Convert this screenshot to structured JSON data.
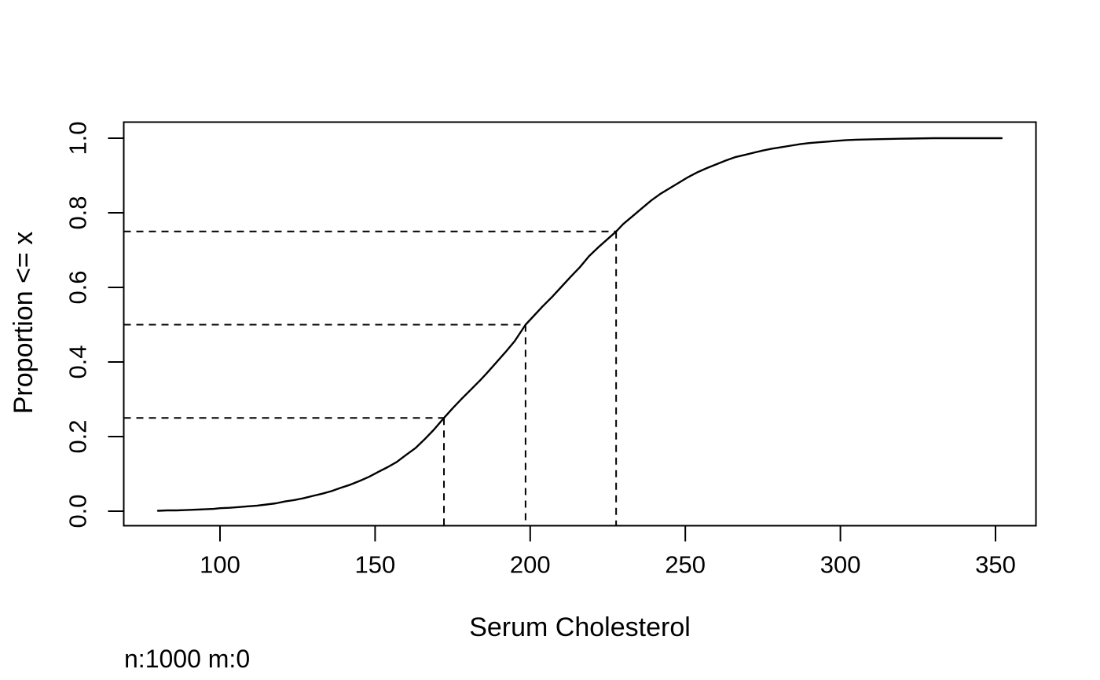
{
  "chart_data": {
    "type": "line",
    "subtype": "ecdf",
    "title": "",
    "xlabel": "Serum Cholesterol",
    "ylabel": "Proportion <= x",
    "footnote": "n:1000 m:0",
    "n": "1000",
    "m": "0",
    "x_ticks": [
      100,
      150,
      200,
      250,
      300,
      350
    ],
    "x_tick_labels": [
      "100",
      "150",
      "200",
      "250",
      "300",
      "350"
    ],
    "y_ticks": [
      0.0,
      0.2,
      0.4,
      0.6,
      0.8,
      1.0
    ],
    "y_tick_labels": [
      "0.0",
      "0.2",
      "0.4",
      "0.6",
      "0.8",
      "1.0"
    ],
    "xlim": [
      69,
      363.5
    ],
    "ylim": [
      -0.044,
      1.044
    ],
    "grid": false,
    "legend": "none",
    "line_color": "#000000",
    "dash_color": "#000000",
    "quantiles": [
      {
        "p": 0.25,
        "x": 172.2
      },
      {
        "p": 0.5,
        "x": 198.5
      },
      {
        "p": 0.75,
        "x": 227.7
      }
    ],
    "series": [
      {
        "name": "ecdf",
        "points": [
          [
            80,
            0.001
          ],
          [
            83,
            0.002
          ],
          [
            86,
            0.002
          ],
          [
            89,
            0.003
          ],
          [
            92,
            0.004
          ],
          [
            95,
            0.005
          ],
          [
            98,
            0.006
          ],
          [
            100,
            0.008
          ],
          [
            103,
            0.009
          ],
          [
            106,
            0.011
          ],
          [
            109,
            0.013
          ],
          [
            112,
            0.015
          ],
          [
            115,
            0.018
          ],
          [
            118,
            0.021
          ],
          [
            121,
            0.026
          ],
          [
            124,
            0.03
          ],
          [
            127,
            0.035
          ],
          [
            130,
            0.041
          ],
          [
            133,
            0.047
          ],
          [
            136,
            0.054
          ],
          [
            139,
            0.063
          ],
          [
            142,
            0.071
          ],
          [
            145,
            0.081
          ],
          [
            148,
            0.092
          ],
          [
            151,
            0.105
          ],
          [
            154,
            0.118
          ],
          [
            157,
            0.132
          ],
          [
            160,
            0.151
          ],
          [
            163,
            0.169
          ],
          [
            166,
            0.193
          ],
          [
            169,
            0.219
          ],
          [
            172.2,
            0.25
          ],
          [
            175,
            0.276
          ],
          [
            178,
            0.302
          ],
          [
            181,
            0.327
          ],
          [
            184,
            0.352
          ],
          [
            186,
            0.37
          ],
          [
            189,
            0.398
          ],
          [
            192,
            0.426
          ],
          [
            195,
            0.456
          ],
          [
            198.5,
            0.5
          ],
          [
            201,
            0.522
          ],
          [
            204,
            0.549
          ],
          [
            207,
            0.574
          ],
          [
            210,
            0.601
          ],
          [
            213,
            0.628
          ],
          [
            216,
            0.654
          ],
          [
            219,
            0.684
          ],
          [
            222,
            0.708
          ],
          [
            225,
            0.73
          ],
          [
            227.7,
            0.75
          ],
          [
            230,
            0.77
          ],
          [
            233,
            0.791
          ],
          [
            236,
            0.812
          ],
          [
            239,
            0.833
          ],
          [
            242,
            0.851
          ],
          [
            245,
            0.866
          ],
          [
            248,
            0.881
          ],
          [
            251,
            0.896
          ],
          [
            254,
            0.909
          ],
          [
            257,
            0.92
          ],
          [
            260,
            0.93
          ],
          [
            263,
            0.94
          ],
          [
            266,
            0.949
          ],
          [
            269,
            0.955
          ],
          [
            272,
            0.961
          ],
          [
            275,
            0.967
          ],
          [
            278,
            0.972
          ],
          [
            281,
            0.976
          ],
          [
            284,
            0.98
          ],
          [
            287,
            0.984
          ],
          [
            290,
            0.987
          ],
          [
            293,
            0.989
          ],
          [
            296,
            0.991
          ],
          [
            299,
            0.993
          ],
          [
            302,
            0.995
          ],
          [
            305,
            0.996
          ],
          [
            310,
            0.997
          ],
          [
            316,
            0.998
          ],
          [
            322,
            0.999
          ],
          [
            330,
            1.0
          ],
          [
            352,
            1.0
          ]
        ]
      }
    ]
  }
}
